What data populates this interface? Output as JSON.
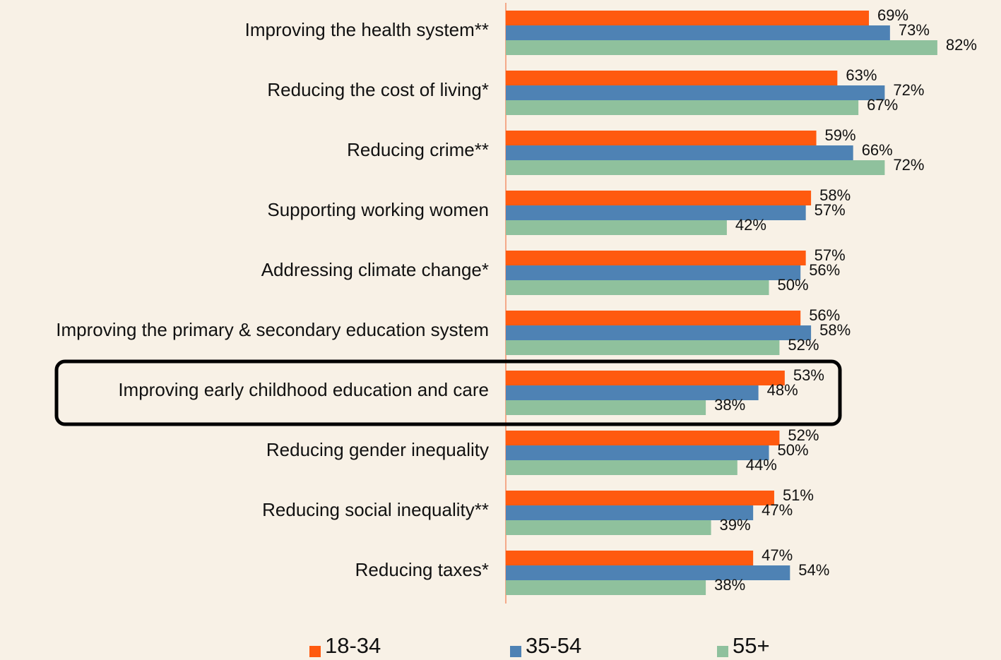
{
  "chart_data": {
    "type": "bar",
    "orientation": "horizontal",
    "categories": [
      "Improving the health system**",
      "Reducing the cost of living*",
      "Reducing crime**",
      "Supporting working women",
      "Addressing climate change*",
      "Improving the primary & secondary education system",
      "Improving early childhood education and care",
      "Reducing gender inequality",
      "Reducing social inequality**",
      "Reducing taxes*"
    ],
    "series": [
      {
        "name": "18-34",
        "color": "#ff5a0f",
        "values": [
          69,
          63,
          59,
          58,
          57,
          56,
          53,
          52,
          51,
          47
        ],
        "value_labels": [
          "69%",
          "63%",
          "59%",
          "58%",
          "57%",
          "56%",
          "53%",
          "52%",
          "51%",
          "47%"
        ]
      },
      {
        "name": "35-54",
        "color": "#4e82b4",
        "values": [
          73,
          72,
          66,
          57,
          56,
          58,
          48,
          50,
          47,
          54
        ],
        "value_labels": [
          "73%",
          "72%",
          "66%",
          "57%",
          "56%",
          "58%",
          "48%",
          "50%",
          "47%",
          "54%"
        ]
      },
      {
        "name": "55+",
        "color": "#8fc19d",
        "values": [
          82,
          67,
          72,
          42,
          50,
          52,
          38,
          44,
          39,
          38
        ],
        "value_labels": [
          "82%",
          "67%",
          "72%",
          "42%",
          "50%",
          "52%",
          "38%",
          "44%",
          "39%",
          "38%"
        ]
      }
    ],
    "xlim": [
      0,
      100
    ],
    "legend": "bottom"
  }
}
